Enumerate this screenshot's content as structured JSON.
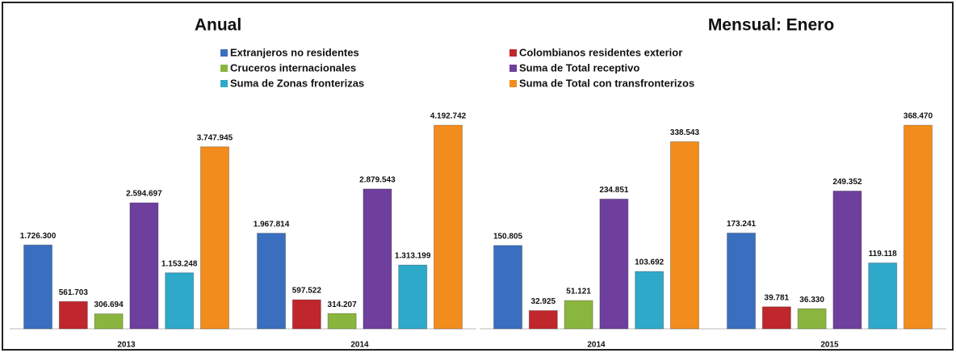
{
  "chart_data": [
    {
      "type": "bar",
      "title": "Anual",
      "categories": [
        "2013",
        "2014"
      ],
      "series": [
        {
          "name": "Extranjeros no residentes",
          "color": "#3a6fbf",
          "values": [
            1726300,
            1967814
          ],
          "value_labels": [
            "1.726.300",
            "1.967.814"
          ]
        },
        {
          "name": "Colombianos residentes exterior",
          "color": "#c0272d",
          "values": [
            561703,
            597522
          ],
          "value_labels": [
            "561.703",
            "597.522"
          ]
        },
        {
          "name": "Cruceros internacionales",
          "color": "#8ab63f",
          "values": [
            306694,
            314207
          ],
          "value_labels": [
            "306.694",
            "314.207"
          ]
        },
        {
          "name": "Suma de Total receptivo",
          "color": "#6f3f9e",
          "values": [
            2594697,
            2879543
          ],
          "value_labels": [
            "2.594.697",
            "2.879.543"
          ]
        },
        {
          "name": "Suma de Zonas fronterizas",
          "color": "#2fa9c9",
          "values": [
            1153248,
            1313199
          ],
          "value_labels": [
            "1.153.248",
            "1.313.199"
          ]
        },
        {
          "name": "Suma de Total con transfronterizos",
          "color": "#f28c1c",
          "values": [
            3747945,
            4192742
          ],
          "value_labels": [
            "3.747.945",
            "4.192.742"
          ]
        }
      ]
    },
    {
      "type": "bar",
      "title": "Mensual: Enero",
      "categories": [
        "2014",
        "2015"
      ],
      "series": [
        {
          "values": [
            150805,
            173241
          ],
          "value_labels": [
            "150.805",
            "173.241"
          ]
        },
        {
          "values": [
            32925,
            39781
          ],
          "value_labels": [
            "32.925",
            "39.781"
          ]
        },
        {
          "values": [
            51121,
            36330
          ],
          "value_labels": [
            "51.121",
            "36.330"
          ]
        },
        {
          "values": [
            234851,
            249352
          ],
          "value_labels": [
            "234.851",
            "249.352"
          ]
        },
        {
          "values": [
            103692,
            119118
          ],
          "value_labels": [
            "103.692",
            "119.118"
          ]
        },
        {
          "values": [
            338543,
            368470
          ],
          "value_labels": [
            "338.543",
            "368.470"
          ]
        }
      ]
    }
  ]
}
